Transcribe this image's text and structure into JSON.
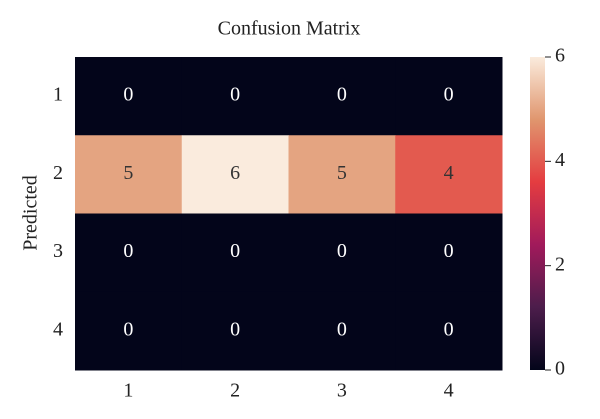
{
  "chart_data": {
    "type": "heatmap",
    "title": "Confusion Matrix",
    "y_label": "Predicted",
    "x_categories": [
      "1",
      "2",
      "3",
      "4"
    ],
    "y_categories": [
      "1",
      "2",
      "3",
      "4"
    ],
    "values": [
      [
        0,
        0,
        0,
        0
      ],
      [
        5,
        6,
        5,
        4
      ],
      [
        0,
        0,
        0,
        0
      ],
      [
        0,
        0,
        0,
        0
      ]
    ],
    "colormap": "rocket",
    "clim": [
      0,
      6
    ],
    "cticks": [
      0,
      2,
      4,
      6
    ]
  }
}
